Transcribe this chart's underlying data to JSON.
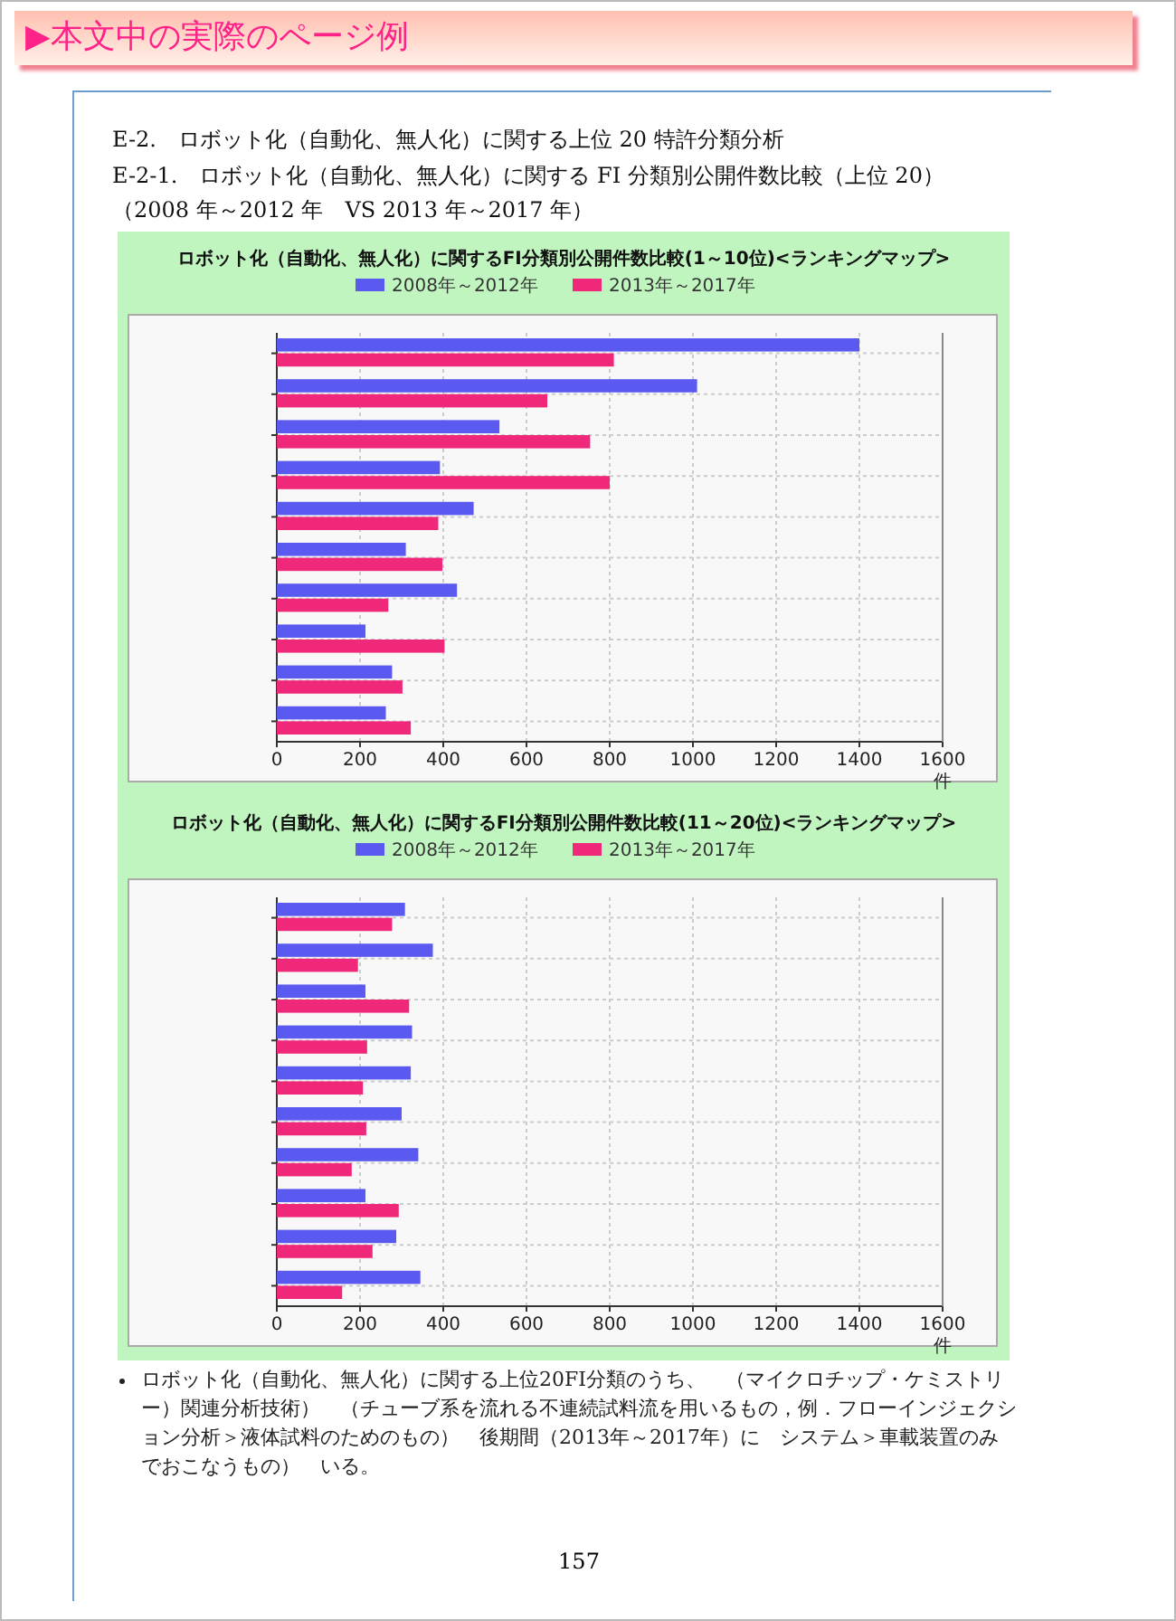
{
  "chart_data": [
    {
      "type": "bar",
      "orientation": "horizontal",
      "title": "ロボット化（自動化、無人化）に関するFI分類別公開件数比較(1～10位)<ランキングマップ>",
      "xlabel": "件",
      "categories": [
        null,
        null,
        null,
        null,
        null,
        null,
        null,
        null,
        null,
        null
      ],
      "series": [
        {
          "name": "2008年～2012年",
          "color": "#5a5af0",
          "values": [
            1400,
            1010,
            535,
            392,
            473,
            310,
            433,
            213,
            277,
            262
          ]
        },
        {
          "name": "2013年～2017年",
          "color": "#f0287a",
          "values": [
            810,
            650,
            753,
            800,
            388,
            398,
            268,
            403,
            302,
            322
          ]
        }
      ],
      "xlim": [
        0,
        1600
      ],
      "xticks": [
        0,
        200,
        400,
        600,
        800,
        1000,
        1200,
        1400,
        1600
      ],
      "grid": true,
      "legend": "top",
      "annotations": [
        "▶本文中の実際のページ例",
        "E-2.　ロボット化（自動化、無人化）に関する上位 20 特許分類分析",
        "E-2-1.　ロボット化（自動化、無人化）に関する FI 分類別公開件数比較（上位 20）（2008 年～2012 年　VS 2013 年～2017 年）"
      ]
    },
    {
      "type": "bar",
      "orientation": "horizontal",
      "title": "ロボット化（自動化、無人化）に関するFI分類別公開件数比較(11～20位)<ランキングマップ>",
      "xlabel": "件",
      "categories": [
        null,
        null,
        null,
        null,
        null,
        null,
        null,
        null,
        null,
        null
      ],
      "series": [
        {
          "name": "2008年～2012年",
          "color": "#5a5af0",
          "values": [
            308,
            375,
            213,
            325,
            322,
            300,
            340,
            213,
            287,
            345
          ]
        },
        {
          "name": "2013年～2017年",
          "color": "#f0287a",
          "values": [
            277,
            195,
            318,
            217,
            207,
            215,
            180,
            293,
            230,
            157
          ]
        }
      ],
      "xlim": [
        0,
        1600
      ],
      "xticks": [
        0,
        200,
        400,
        600,
        800,
        1000,
        1200,
        1400,
        1600
      ],
      "grid": true,
      "legend": "top",
      "annotations": [
        "ロボット化（自動化、無人化）に関する上位20FI分類のうち、",
        "（マイクロチップ・ケミストリー）関連分析技術）",
        "（チューブ系を流れる不連続試料流を用いるもの，例．フローインジェクション分析＞液体試料のためのもの）",
        "後期間（2013年～2017年）に",
        "システム＞車載装置のみでおこなうもの）",
        "いる。",
        "157"
      ]
    }
  ]
}
